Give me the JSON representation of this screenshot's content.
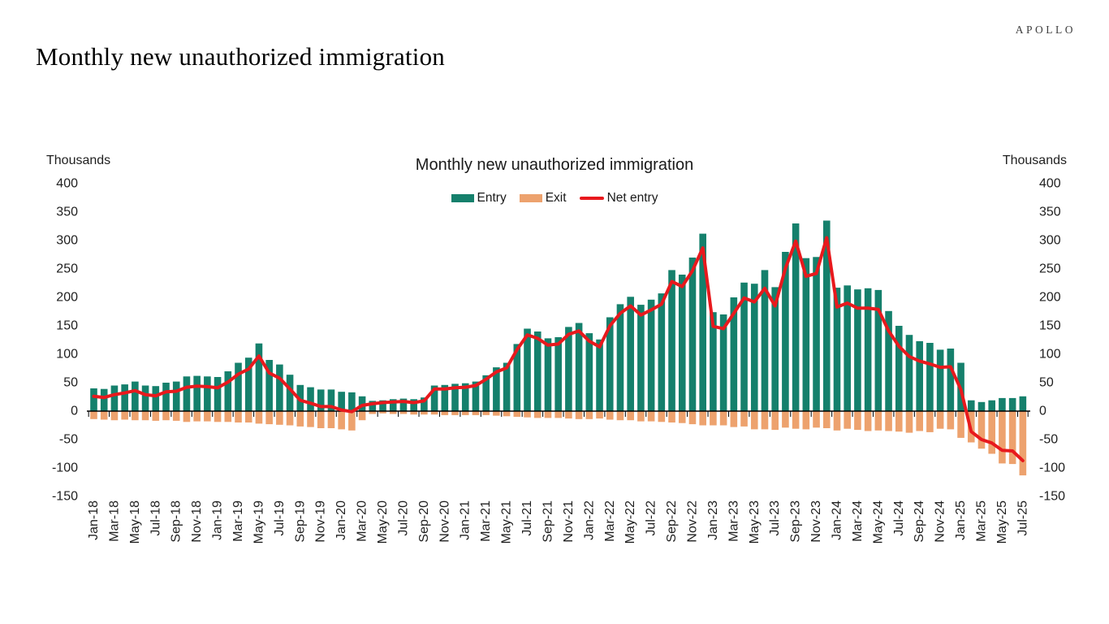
{
  "header": {
    "logo": "APOLLO",
    "page_title": "Monthly new unauthorized immigration"
  },
  "chart": {
    "title": "Monthly new unauthorized immigration",
    "legend": [
      {
        "label": "Entry",
        "type": "swatch",
        "color": "#15806c"
      },
      {
        "label": "Exit",
        "type": "swatch",
        "color": "#eda26e"
      },
      {
        "label": "Net entry",
        "type": "line",
        "color": "#e8191d"
      }
    ],
    "y_axis": {
      "unit_label": "Thousands",
      "ticks": [
        400,
        350,
        300,
        250,
        200,
        150,
        100,
        50,
        0,
        -50,
        -100,
        -150
      ]
    },
    "x_axis": {
      "label_interval": 2,
      "tick_interval": 2
    }
  },
  "chart_data": {
    "type": "bar+line",
    "title": "Monthly new unauthorized immigration",
    "ylabel": "Thousands",
    "ylim": [
      -150,
      400
    ],
    "y_tick_step": 50,
    "grid": false,
    "legend_position": "top-center",
    "x": [
      "Jan-18",
      "Feb-18",
      "Mar-18",
      "Apr-18",
      "May-18",
      "Jun-18",
      "Jul-18",
      "Aug-18",
      "Sep-18",
      "Oct-18",
      "Nov-18",
      "Dec-18",
      "Jan-19",
      "Feb-19",
      "Mar-19",
      "Apr-19",
      "May-19",
      "Jun-19",
      "Jul-19",
      "Aug-19",
      "Sep-19",
      "Oct-19",
      "Nov-19",
      "Dec-19",
      "Jan-20",
      "Feb-20",
      "Mar-20",
      "Apr-20",
      "May-20",
      "Jun-20",
      "Jul-20",
      "Aug-20",
      "Sep-20",
      "Oct-20",
      "Nov-20",
      "Dec-20",
      "Jan-21",
      "Feb-21",
      "Mar-21",
      "Apr-21",
      "May-21",
      "Jun-21",
      "Jul-21",
      "Aug-21",
      "Sep-21",
      "Oct-21",
      "Nov-21",
      "Dec-21",
      "Jan-22",
      "Feb-22",
      "Mar-22",
      "Apr-22",
      "May-22",
      "Jun-22",
      "Jul-22",
      "Aug-22",
      "Sep-22",
      "Oct-22",
      "Nov-22",
      "Dec-22",
      "Jan-23",
      "Feb-23",
      "Mar-23",
      "Apr-23",
      "May-23",
      "Jun-23",
      "Jul-23",
      "Aug-23",
      "Sep-23",
      "Oct-23",
      "Nov-23",
      "Dec-23",
      "Jan-24",
      "Feb-24",
      "Mar-24",
      "Apr-24",
      "May-24",
      "Jun-24",
      "Jul-24",
      "Aug-24",
      "Sep-24",
      "Oct-24",
      "Nov-24",
      "Dec-24",
      "Jan-25",
      "Feb-25",
      "Mar-25",
      "Apr-25",
      "May-25",
      "Jun-25",
      "Jul-25"
    ],
    "series": [
      {
        "name": "Entry",
        "type": "bar",
        "color": "#15806c",
        "values": [
          40,
          39,
          45,
          47,
          52,
          45,
          44,
          50,
          52,
          61,
          62,
          61,
          60,
          70,
          85,
          94,
          119,
          90,
          82,
          64,
          46,
          42,
          38,
          38,
          34,
          33,
          26,
          18,
          19,
          21,
          22,
          21,
          24,
          45,
          46,
          48,
          49,
          52,
          63,
          77,
          85,
          118,
          145,
          140,
          128,
          130,
          148,
          155,
          137,
          126,
          165,
          188,
          201,
          187,
          196,
          207,
          248,
          240,
          270,
          312,
          174,
          170,
          200,
          226,
          224,
          248,
          218,
          280,
          330,
          269,
          271,
          335,
          217,
          221,
          214,
          216,
          213,
          176,
          150,
          134,
          123,
          120,
          108,
          110,
          85,
          19,
          16,
          19,
          23,
          23,
          26
        ]
      },
      {
        "name": "Exit",
        "type": "bar",
        "color": "#eda26e",
        "values": [
          -14,
          -15,
          -16,
          -15,
          -16,
          -16,
          -17,
          -16,
          -17,
          -19,
          -18,
          -18,
          -19,
          -19,
          -20,
          -20,
          -22,
          -23,
          -24,
          -25,
          -27,
          -28,
          -30,
          -30,
          -32,
          -34,
          -16,
          -5,
          -4,
          -5,
          -5,
          -6,
          -6,
          -6,
          -7,
          -7,
          -7,
          -7,
          -7,
          -8,
          -9,
          -10,
          -11,
          -12,
          -12,
          -12,
          -13,
          -14,
          -14,
          -13,
          -15,
          -16,
          -16,
          -18,
          -18,
          -19,
          -20,
          -21,
          -23,
          -25,
          -25,
          -25,
          -28,
          -27,
          -32,
          -32,
          -33,
          -29,
          -31,
          -32,
          -29,
          -30,
          -34,
          -31,
          -33,
          -35,
          -34,
          -35,
          -36,
          -38,
          -35,
          -37,
          -31,
          -32,
          -47,
          -55,
          -66,
          -75,
          -92,
          -93,
          -113
        ]
      },
      {
        "name": "Net entry",
        "type": "line",
        "color": "#e8191d",
        "values": [
          26,
          24,
          29,
          32,
          36,
          29,
          27,
          34,
          35,
          42,
          44,
          43,
          41,
          51,
          65,
          74,
          97,
          67,
          58,
          39,
          19,
          14,
          8,
          8,
          2,
          -1,
          10,
          13,
          15,
          16,
          17,
          15,
          18,
          39,
          39,
          41,
          42,
          45,
          56,
          69,
          76,
          108,
          134,
          128,
          116,
          118,
          135,
          141,
          123,
          113,
          150,
          172,
          185,
          169,
          178,
          188,
          228,
          219,
          247,
          287,
          149,
          145,
          172,
          199,
          192,
          216,
          185,
          251,
          299,
          237,
          242,
          305,
          183,
          190,
          181,
          181,
          179,
          141,
          114,
          96,
          88,
          83,
          77,
          78,
          38,
          -36,
          -50,
          -56,
          -69,
          -70,
          -87
        ]
      }
    ]
  }
}
